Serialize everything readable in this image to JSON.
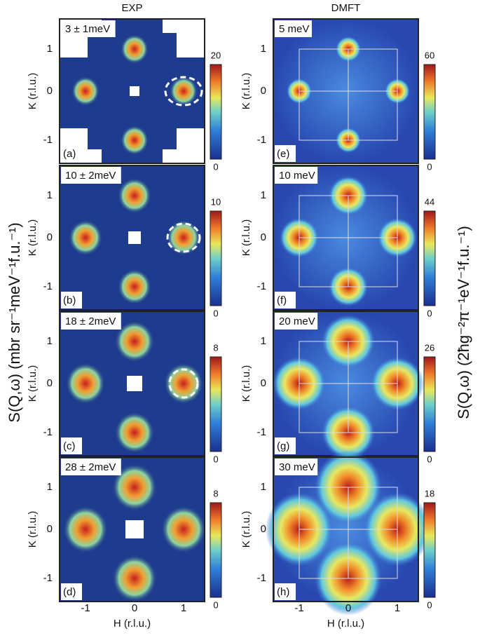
{
  "columns": [
    {
      "title": "EXP",
      "kind": "exp",
      "panels": [
        {
          "energy": "3 ± 1meV",
          "tag": "(a)",
          "colorbar": {
            "max": "20",
            "min": "0"
          }
        },
        {
          "energy": "10 ± 2meV",
          "tag": "(b)",
          "colorbar": {
            "max": "10",
            "min": "0"
          }
        },
        {
          "energy": "18 ± 2meV",
          "tag": "(c)",
          "colorbar": {
            "max": "8",
            "min": "0"
          }
        },
        {
          "energy": "28 ± 2meV",
          "tag": "(d)",
          "colorbar": {
            "max": "8",
            "min": "0"
          }
        }
      ]
    },
    {
      "title": "DMFT",
      "kind": "dmft",
      "panels": [
        {
          "energy": "5 meV",
          "tag": "(e)",
          "colorbar": {
            "max": "60",
            "min": "0"
          }
        },
        {
          "energy": "10 meV",
          "tag": "(f)",
          "colorbar": {
            "max": "44",
            "min": "0"
          }
        },
        {
          "energy": "20 meV",
          "tag": "(g)",
          "colorbar": {
            "max": "26",
            "min": "0"
          }
        },
        {
          "energy": "30 meV",
          "tag": "(h)",
          "colorbar": {
            "max": "18",
            "min": "0"
          }
        }
      ]
    }
  ],
  "y_axis_label": "K (r.l.u.)",
  "y_tick_labels": [
    "1",
    "0",
    "-1"
  ],
  "x_axis_label": "H (r.l.u.)",
  "x_tick_labels": [
    "-1",
    "0",
    "1"
  ],
  "left_quantity": "S(Q,ω) (mbr sr⁻¹meV⁻¹f.u.⁻¹)",
  "right_quantity": "S(Q,ω) (2ħg⁻²π⁻¹eV⁻¹f.u.⁻¹)"
}
